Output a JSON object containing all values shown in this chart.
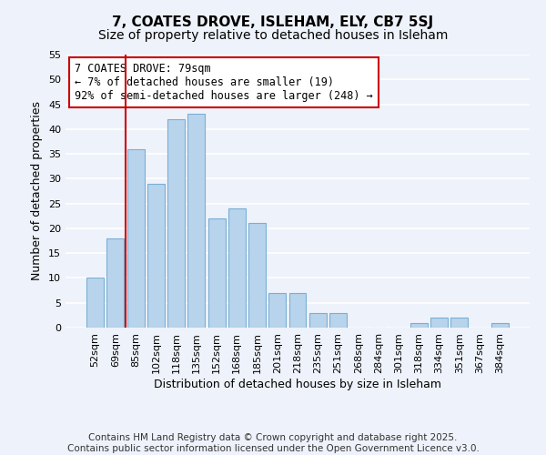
{
  "title": "7, COATES DROVE, ISLEHAM, ELY, CB7 5SJ",
  "subtitle": "Size of property relative to detached houses in Isleham",
  "xlabel": "Distribution of detached houses by size in Isleham",
  "ylabel": "Number of detached properties",
  "bar_color": "#b8d4ec",
  "bar_edge_color": "#7aafd4",
  "background_color": "#eef2fa",
  "grid_color": "#ffffff",
  "bins": [
    "52sqm",
    "69sqm",
    "85sqm",
    "102sqm",
    "118sqm",
    "135sqm",
    "152sqm",
    "168sqm",
    "185sqm",
    "201sqm",
    "218sqm",
    "235sqm",
    "251sqm",
    "268sqm",
    "284sqm",
    "301sqm",
    "318sqm",
    "334sqm",
    "351sqm",
    "367sqm",
    "384sqm"
  ],
  "values": [
    10,
    18,
    36,
    29,
    42,
    43,
    22,
    24,
    21,
    7,
    7,
    3,
    3,
    0,
    0,
    0,
    1,
    2,
    2,
    0,
    1
  ],
  "ylim": [
    0,
    55
  ],
  "yticks": [
    0,
    5,
    10,
    15,
    20,
    25,
    30,
    35,
    40,
    45,
    50,
    55
  ],
  "vline_color": "#cc0000",
  "vline_xindex": 2,
  "annotation_title": "7 COATES DROVE: 79sqm",
  "annotation_line1": "← 7% of detached houses are smaller (19)",
  "annotation_line2": "92% of semi-detached houses are larger (248) →",
  "annotation_box_color": "#ffffff",
  "annotation_box_edge_color": "#cc0000",
  "footer1": "Contains HM Land Registry data © Crown copyright and database right 2025.",
  "footer2": "Contains public sector information licensed under the Open Government Licence v3.0.",
  "title_fontsize": 11,
  "subtitle_fontsize": 10,
  "axis_label_fontsize": 9,
  "tick_fontsize": 8,
  "annotation_fontsize": 8.5,
  "footer_fontsize": 7.5
}
